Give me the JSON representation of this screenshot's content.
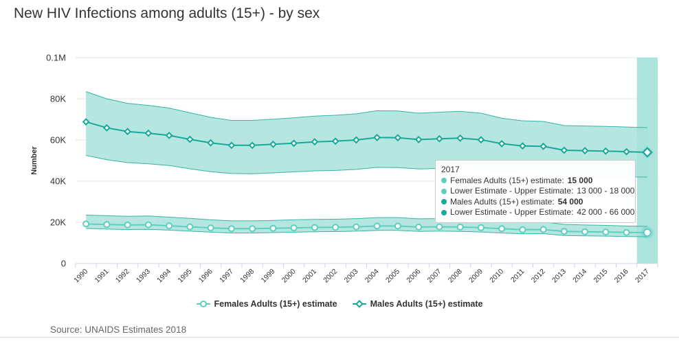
{
  "title": "New HIV Infections among adults (15+) - by sex",
  "source": "Source: UNAIDS Estimates 2018",
  "colors": {
    "female": "#5dcfc0",
    "male": "#17a89a",
    "band": "#a8e2da",
    "bandLine": "#35b4a6"
  },
  "chart_data": {
    "type": "line",
    "title": "New HIV Infections among adults (15+) - by sex",
    "ylabel": "Number",
    "xlabel": "",
    "ylim": [
      0,
      100000
    ],
    "y_ticks": [
      "0",
      "20K",
      "40K",
      "60K",
      "80K",
      "0.1M"
    ],
    "y_tick_values": [
      0,
      20000,
      40000,
      60000,
      80000,
      100000
    ],
    "x": [
      "1990",
      "1991",
      "1992",
      "1993",
      "1994",
      "1995",
      "1996",
      "1997",
      "1998",
      "1999",
      "2000",
      "2001",
      "2002",
      "2003",
      "2004",
      "2005",
      "2006",
      "2007",
      "2008",
      "2009",
      "2010",
      "2011",
      "2012",
      "2013",
      "2014",
      "2015",
      "2016",
      "2017"
    ],
    "series": [
      {
        "name": "Females Adults (15+) estimate",
        "values": [
          19200,
          18900,
          18700,
          18800,
          18300,
          17800,
          17300,
          16900,
          16900,
          17100,
          17300,
          17500,
          17600,
          17800,
          18200,
          18200,
          17700,
          17800,
          17700,
          17400,
          16900,
          16400,
          16500,
          15600,
          15400,
          15300,
          15100,
          15000
        ],
        "lower": [
          17000,
          16700,
          16500,
          16600,
          16200,
          15700,
          15200,
          14800,
          14800,
          15000,
          15200,
          15400,
          15500,
          15700,
          16100,
          16100,
          15600,
          15700,
          15600,
          15300,
          14800,
          14400,
          14500,
          13600,
          13400,
          13300,
          13100,
          13000
        ],
        "upper": [
          23500,
          23200,
          22900,
          23100,
          22500,
          21900,
          21200,
          20700,
          20700,
          20900,
          21200,
          21400,
          21500,
          21800,
          22300,
          22300,
          21700,
          21800,
          21700,
          21300,
          20700,
          20100,
          20200,
          19000,
          18700,
          18500,
          18200,
          18000
        ]
      },
      {
        "name": "Males Adults (15+) estimate",
        "values": [
          68800,
          65900,
          64100,
          63300,
          62200,
          60300,
          58600,
          57400,
          57400,
          57900,
          58400,
          59100,
          59400,
          60000,
          61200,
          61100,
          60200,
          60600,
          60900,
          60100,
          58200,
          57100,
          56900,
          55000,
          54800,
          54600,
          54300,
          54000
        ],
        "lower": [
          52500,
          50400,
          49000,
          48400,
          47600,
          46000,
          44600,
          43700,
          43600,
          44000,
          44500,
          45000,
          45200,
          45700,
          46700,
          46600,
          45900,
          46200,
          46500,
          45800,
          44400,
          43600,
          43400,
          42200,
          42000,
          42000,
          42000,
          42000
        ],
        "upper": [
          83500,
          80000,
          77800,
          76800,
          75500,
          73200,
          71000,
          69500,
          69500,
          70100,
          70800,
          71600,
          72000,
          72700,
          74200,
          74100,
          73000,
          73500,
          73900,
          73000,
          70600,
          69300,
          69000,
          67000,
          66800,
          66600,
          66300,
          66000
        ]
      }
    ],
    "legend": {
      "position": "bottom"
    },
    "grid": true
  },
  "tooltip": {
    "year": "2017",
    "rows": [
      {
        "label": "Females Adults (15+) estimate: ",
        "value": "15 000",
        "bold": true,
        "color": "#5dcfc0"
      },
      {
        "label": "Lower Estimate - Upper Estimate: ",
        "value": "13 000 - 18 000",
        "bold": false,
        "color": "#5dcfc0"
      },
      {
        "label": "Males Adults (15+) estimate: ",
        "value": "54 000",
        "bold": true,
        "color": "#17a89a"
      },
      {
        "label": "Lower Estimate - Upper Estimate: ",
        "value": "42 000 - 66 000",
        "bold": false,
        "color": "#17a89a"
      }
    ]
  }
}
